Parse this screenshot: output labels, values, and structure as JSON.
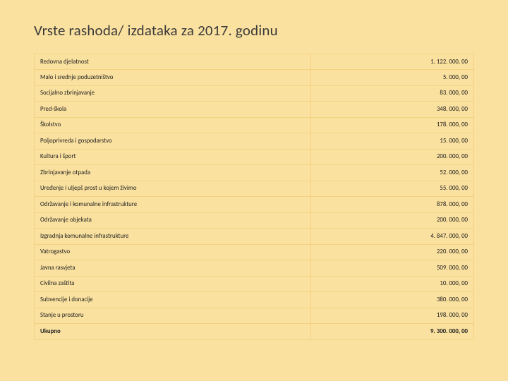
{
  "page": {
    "background_color": "#fbe19f",
    "title": "Vrste rashoda/ izdataka za 2017. godinu",
    "title_color": "#3b3b3b",
    "title_fontsize": 21
  },
  "table": {
    "border_color": "#f4d282",
    "border_width": 1,
    "cell_bg": "#fbe19f",
    "label_fontsize": 8.8,
    "value_fontsize": 8.8,
    "text_color": "#222222",
    "bold_rows": [
      17
    ],
    "columns": [
      "label",
      "value"
    ],
    "rows": [
      {
        "label": "Redovna djelatnost",
        "value": "1. 122. 000, 00"
      },
      {
        "label": "Malo i srednje poduzetništvo",
        "value": "5. 000, 00"
      },
      {
        "label": "Socijalno zbrinjavanje",
        "value": "83. 000, 00"
      },
      {
        "label": "Pred-škola",
        "value": "348. 000, 00"
      },
      {
        "label": "Školstvo",
        "value": "178. 000, 00"
      },
      {
        "label": "Poljoprivreda i gospodarstvo",
        "value": "15. 000, 00"
      },
      {
        "label": "Kultura i šport",
        "value": "200. 000, 00"
      },
      {
        "label": "Zbrinjavanje otpada",
        "value": "52. 000, 00"
      },
      {
        "label": "Uređenje i uljepš prost u kojem živimo",
        "value": "55. 000, 00"
      },
      {
        "label": "Održavanje i komunalne infrastrukture",
        "value": "878. 000, 00"
      },
      {
        "label": "Održavanje objekata",
        "value": "200. 000, 00"
      },
      {
        "label": "Izgradnja komunalne infrastrukture",
        "value": "4. 847. 000, 00"
      },
      {
        "label": "Vatrogastvo",
        "value": "220. 000, 00"
      },
      {
        "label": "Javna rasvjeta",
        "value": "509. 000, 00"
      },
      {
        "label": "Civilna zaštita",
        "value": "10. 000, 00"
      },
      {
        "label": "Subvencije i donacije",
        "value": "380. 000, 00"
      },
      {
        "label": "Stanje u prostoru",
        "value": "198. 000, 00"
      },
      {
        "label": "Ukupno",
        "value": "9. 300. 000, 00"
      }
    ]
  }
}
